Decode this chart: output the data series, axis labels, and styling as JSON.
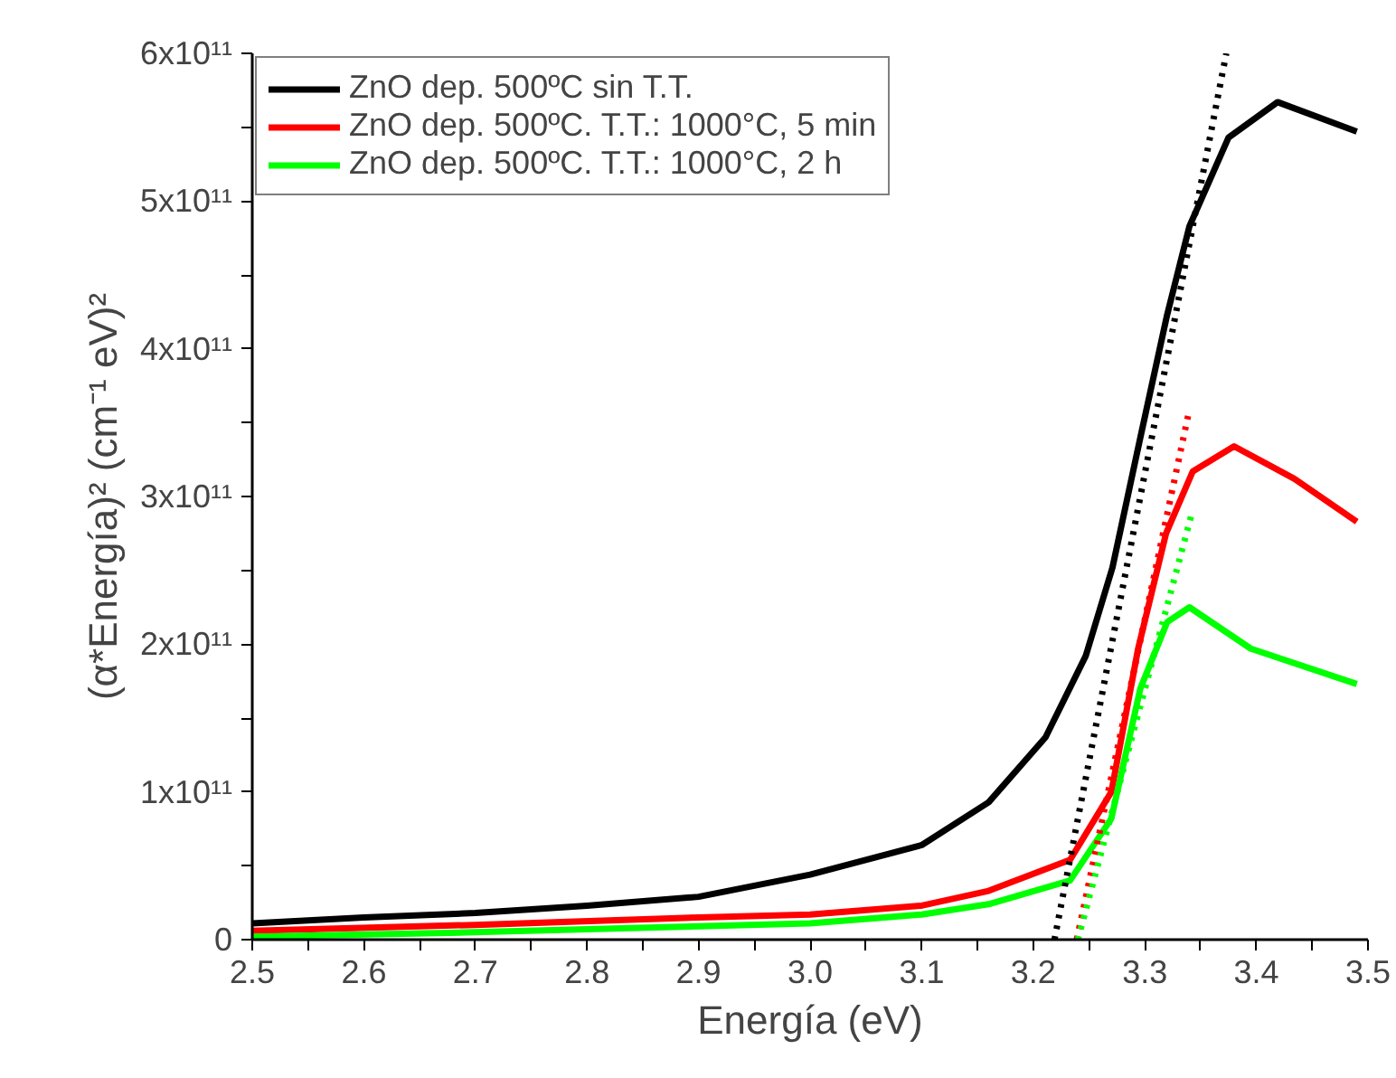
{
  "chart_data": {
    "type": "line",
    "xlabel": "Energía (eV)",
    "ylabel": "(α*Energía)² (cm⁻¹ eV)²",
    "xlim": [
      2.5,
      3.5
    ],
    "ylim": [
      0,
      600000000000.0
    ],
    "xticks": [
      2.5,
      {
        "value": 2.55,
        "label": null
      },
      2.6,
      {
        "value": 2.65,
        "label": null
      },
      2.7,
      {
        "value": 2.75,
        "label": null
      },
      2.8,
      {
        "value": 2.85,
        "label": null
      },
      2.9,
      {
        "value": 2.95,
        "label": null
      },
      {
        "value": 3.0,
        "label": "3.0"
      },
      {
        "value": 3.05,
        "label": null
      },
      3.1,
      {
        "value": 3.15,
        "label": null
      },
      3.2,
      {
        "value": 3.25,
        "label": null
      },
      3.3,
      {
        "value": 3.35,
        "label": null
      },
      3.4,
      {
        "value": 3.45,
        "label": null
      },
      3.5
    ],
    "yticks": [
      0,
      {
        "value": 50000000000.0,
        "label": null
      },
      {
        "value": 100000000000.0,
        "label": "1x10¹¹"
      },
      {
        "value": 150000000000.0,
        "label": null
      },
      {
        "value": 200000000000.0,
        "label": "2x10¹¹"
      },
      {
        "value": 250000000000.0,
        "label": null
      },
      {
        "value": 300000000000.0,
        "label": "3x10¹¹"
      },
      {
        "value": 350000000000.0,
        "label": null
      },
      {
        "value": 400000000000.0,
        "label": "4x10¹¹"
      },
      {
        "value": 450000000000.0,
        "label": null
      },
      {
        "value": 500000000000.0,
        "label": "5x10¹¹"
      },
      {
        "value": 550000000000.0,
        "label": null
      },
      {
        "value": 600000000000.0,
        "label": "6x10¹¹"
      }
    ],
    "grid": false,
    "legend": "top left",
    "line_style": "solid",
    "series": [
      {
        "name": "ZnO dep. 500ºC sin T.T.",
        "color": "#000000",
        "x": [
          2.5,
          2.6,
          2.7,
          2.8,
          2.9,
          3.0,
          3.1,
          3.16,
          3.211,
          3.247,
          3.271,
          3.296,
          3.32,
          3.34,
          3.375,
          3.419,
          3.49
        ],
        "values": [
          11000000000.0,
          15000000000.0,
          18000000000.0,
          23000000000.0,
          29000000000.0,
          44000000000.0,
          64000000000.0,
          93000000000.0,
          137000000000.0,
          192000000000.0,
          252000000000.0,
          340000000000.0,
          423000000000.0,
          483000000000.0,
          543000000000.0,
          567000000000.0,
          547000000000.0
        ]
      },
      {
        "name": "ZnO dep. 500ºC. T.T.: 1000°C, 5 min",
        "color": "#ff0000",
        "x": [
          2.5,
          2.7,
          2.9,
          3.0,
          3.1,
          3.16,
          3.233,
          3.27,
          3.294,
          3.319,
          3.343,
          3.38,
          3.434,
          3.49
        ],
        "values": [
          6000000000.0,
          10000000000.0,
          15000000000.0,
          17000000000.0,
          23000000000.0,
          33000000000.0,
          54000000000.0,
          100000000000.0,
          197000000000.0,
          275000000000.0,
          317000000000.0,
          334000000000.0,
          312000000000.0,
          283000000000.0
        ]
      },
      {
        "name": "ZnO dep. 500ºC. T.T.: 1000°C, 2 h",
        "color": "#00ff00",
        "x": [
          2.5,
          2.7,
          2.9,
          3.0,
          3.1,
          3.16,
          3.233,
          3.27,
          3.296,
          3.32,
          3.34,
          3.395,
          3.49
        ],
        "values": [
          2000000000.0,
          5000000000.0,
          9000000000.0,
          11000000000.0,
          17000000000.0,
          24000000000.0,
          40000000000.0,
          82000000000.0,
          170000000000.0,
          215000000000.0,
          225000000000.0,
          197000000000.0,
          173000000000.0
        ]
      },
      {
        "type": "line",
        "line_style": "dotted",
        "color": "#000000",
        "x": [
          3.219,
          3.373
        ],
        "values": [
          0,
          600000000000.0
        ]
      },
      {
        "type": "line",
        "line_style": "dotted",
        "color": "#ff0000",
        "x": [
          3.239,
          3.34
        ],
        "values": [
          0,
          359000000000.0
        ]
      },
      {
        "type": "line",
        "line_style": "dotted",
        "color": "#00ff00",
        "x": [
          3.24,
          3.343
        ],
        "values": [
          0,
          291000000000.0
        ]
      }
    ]
  }
}
